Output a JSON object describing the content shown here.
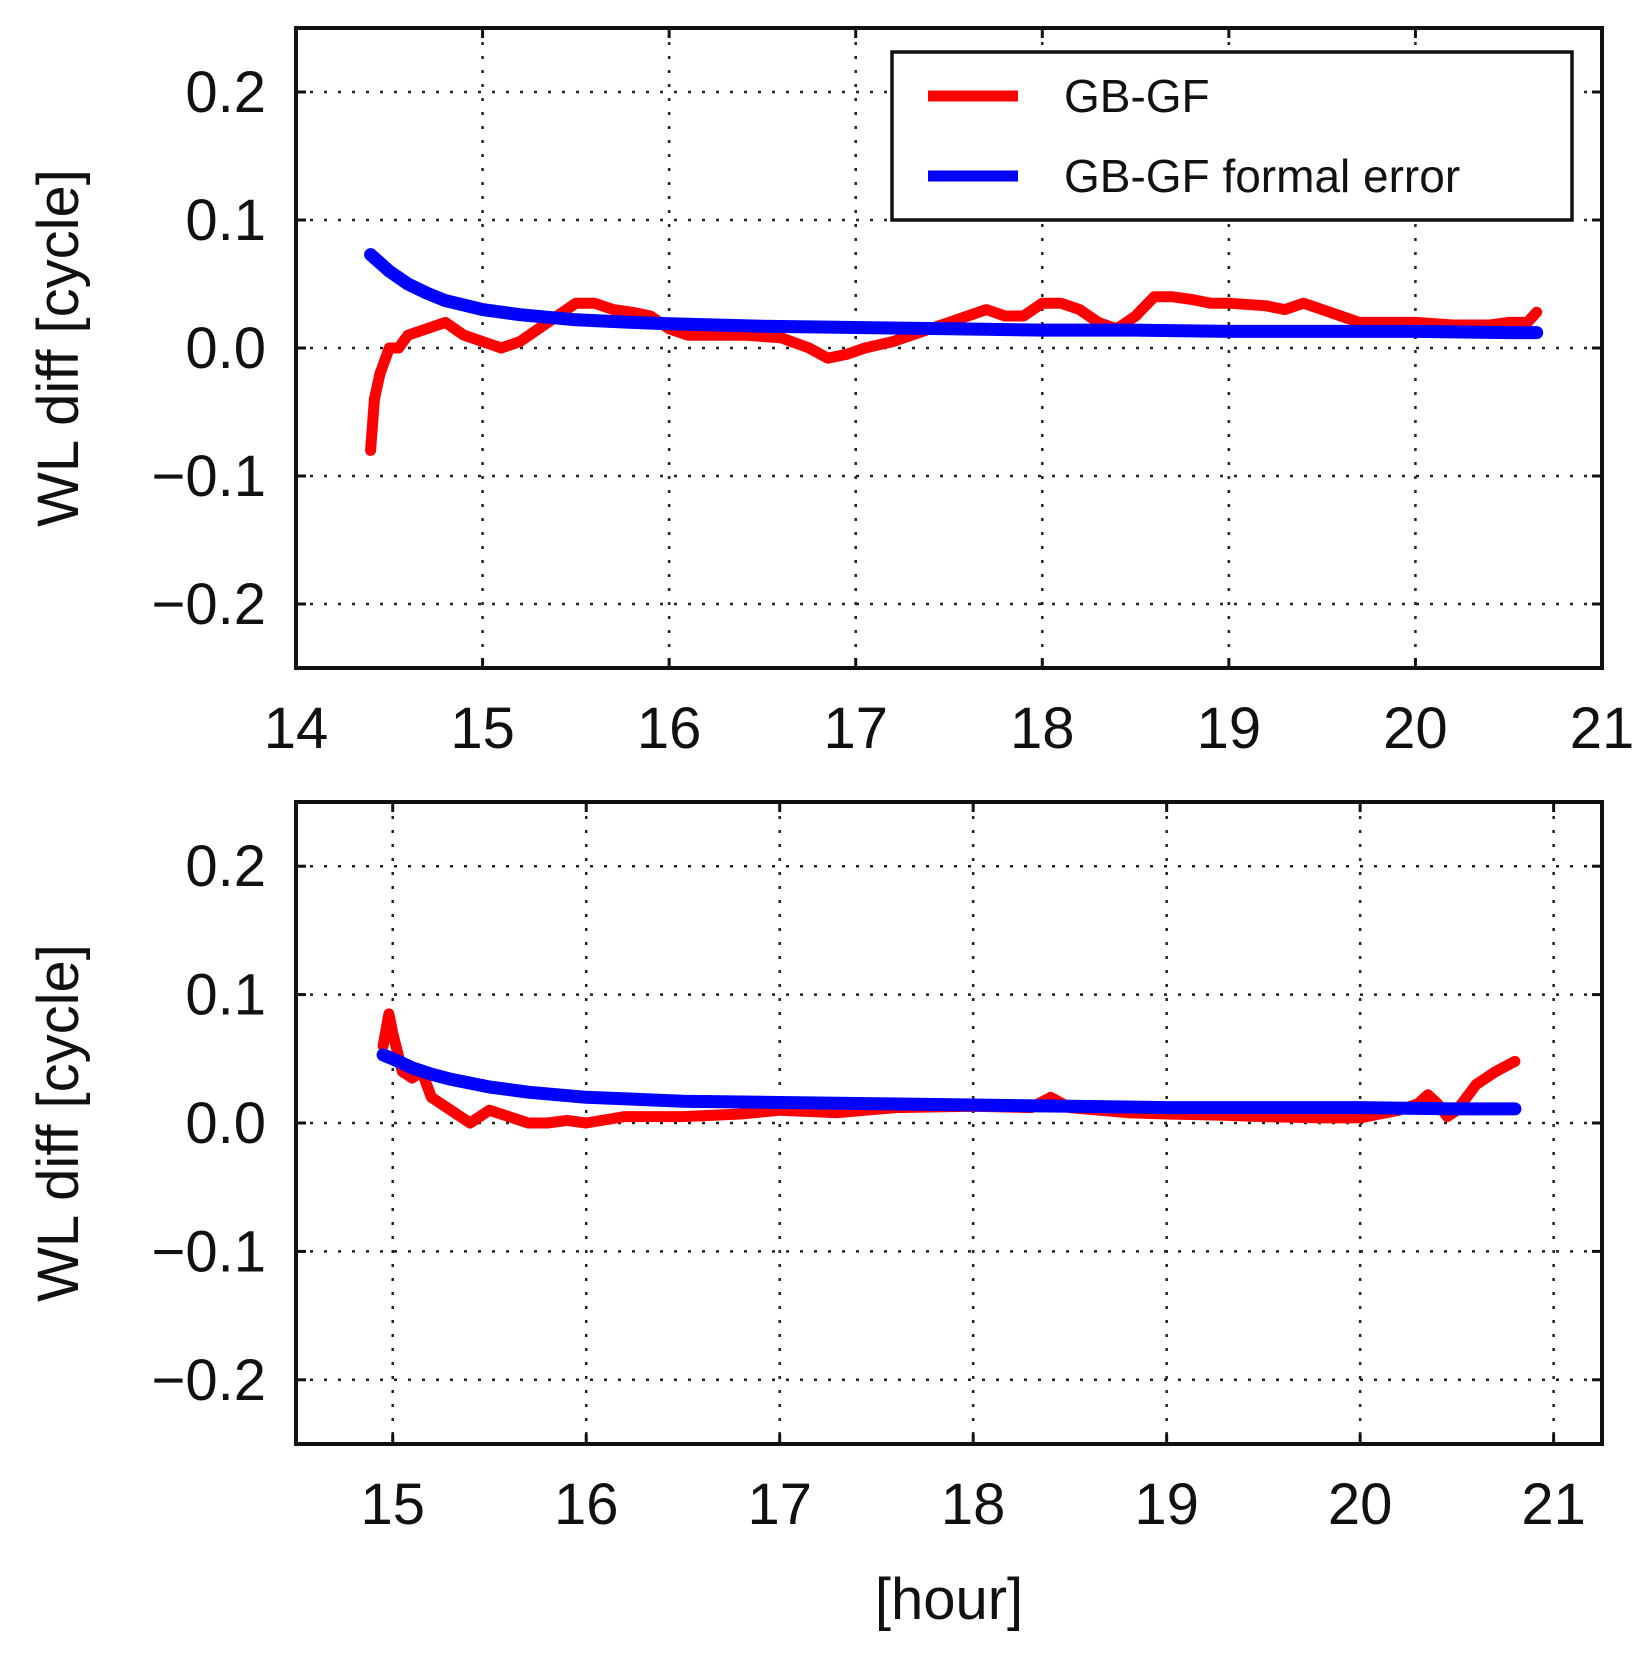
{
  "chart_data": [
    {
      "type": "line",
      "xlim": [
        14,
        21
      ],
      "ylim": [
        -0.25,
        0.25
      ],
      "xticks": [
        "14",
        "15",
        "16",
        "17",
        "18",
        "19",
        "20",
        "21"
      ],
      "yticks": [
        "0.2",
        "0.1",
        "0.0",
        "−0.1",
        "−0.2"
      ],
      "xlabel": "",
      "ylabel": "WL diff [cycle]",
      "grid": true,
      "legend": "top-right",
      "series": [
        {
          "name": "GB-GF",
          "color": "#ff0000",
          "x": [
            14.4,
            14.42,
            14.45,
            14.5,
            14.55,
            14.6,
            14.7,
            14.8,
            14.9,
            15.0,
            15.1,
            15.2,
            15.3,
            15.4,
            15.5,
            15.6,
            15.7,
            15.8,
            15.9,
            16.0,
            16.1,
            16.2,
            16.4,
            16.6,
            16.75,
            16.85,
            16.95,
            17.05,
            17.2,
            17.4,
            17.6,
            17.7,
            17.8,
            17.9,
            18.0,
            18.1,
            18.2,
            18.3,
            18.4,
            18.5,
            18.6,
            18.7,
            18.8,
            18.9,
            19.0,
            19.2,
            19.3,
            19.4,
            19.5,
            19.6,
            19.7,
            19.8,
            20.0,
            20.2,
            20.4,
            20.5,
            20.6,
            20.65
          ],
          "y": [
            -0.08,
            -0.04,
            -0.02,
            0.0,
            0.0,
            0.01,
            0.015,
            0.02,
            0.01,
            0.005,
            0.0,
            0.005,
            0.015,
            0.025,
            0.035,
            0.035,
            0.03,
            0.028,
            0.025,
            0.015,
            0.01,
            0.01,
            0.01,
            0.008,
            0.0,
            -0.008,
            -0.005,
            0.0,
            0.005,
            0.015,
            0.025,
            0.03,
            0.025,
            0.025,
            0.035,
            0.035,
            0.03,
            0.02,
            0.015,
            0.025,
            0.04,
            0.04,
            0.038,
            0.035,
            0.035,
            0.033,
            0.03,
            0.035,
            0.03,
            0.025,
            0.02,
            0.02,
            0.02,
            0.018,
            0.018,
            0.02,
            0.02,
            0.028
          ]
        },
        {
          "name": "GB-GF formal error",
          "color": "#0000ff",
          "x": [
            14.4,
            14.5,
            14.6,
            14.7,
            14.8,
            15.0,
            15.2,
            15.5,
            15.8,
            16.0,
            16.5,
            17.0,
            17.5,
            18.0,
            18.5,
            19.0,
            19.5,
            20.0,
            20.5,
            20.65
          ],
          "y": [
            0.073,
            0.06,
            0.05,
            0.043,
            0.037,
            0.03,
            0.026,
            0.022,
            0.02,
            0.019,
            0.017,
            0.016,
            0.015,
            0.014,
            0.014,
            0.013,
            0.013,
            0.013,
            0.012,
            0.012
          ]
        }
      ]
    },
    {
      "type": "line",
      "xlim": [
        14.5,
        21.25
      ],
      "ylim": [
        -0.25,
        0.25
      ],
      "xticks": [
        "15",
        "16",
        "17",
        "18",
        "19",
        "20",
        "21"
      ],
      "yticks": [
        "0.2",
        "0.1",
        "0.0",
        "−0.1",
        "−0.2"
      ],
      "xlabel": "[hour]",
      "ylabel": "WL diff [cycle]",
      "grid": true,
      "series": [
        {
          "name": "GB-GF",
          "color": "#ff0000",
          "x": [
            14.95,
            14.98,
            15.0,
            15.05,
            15.1,
            15.15,
            15.2,
            15.3,
            15.4,
            15.5,
            15.6,
            15.7,
            15.8,
            15.9,
            16.0,
            16.2,
            16.5,
            16.8,
            17.0,
            17.3,
            17.6,
            18.0,
            18.3,
            18.4,
            18.5,
            18.8,
            19.0,
            19.3,
            19.5,
            19.8,
            20.0,
            20.2,
            20.3,
            20.35,
            20.4,
            20.45,
            20.5,
            20.6,
            20.7,
            20.8
          ],
          "y": [
            0.06,
            0.085,
            0.07,
            0.04,
            0.035,
            0.04,
            0.02,
            0.01,
            0.0,
            0.01,
            0.005,
            0.0,
            0.0,
            0.002,
            0.0,
            0.005,
            0.005,
            0.007,
            0.01,
            0.008,
            0.012,
            0.013,
            0.012,
            0.02,
            0.012,
            0.008,
            0.007,
            0.006,
            0.005,
            0.004,
            0.004,
            0.01,
            0.015,
            0.022,
            0.015,
            0.005,
            0.01,
            0.03,
            0.04,
            0.048
          ]
        },
        {
          "name": "GB-GF formal error",
          "color": "#0000ff",
          "x": [
            14.95,
            15.0,
            15.1,
            15.2,
            15.3,
            15.5,
            15.7,
            16.0,
            16.5,
            17.0,
            17.5,
            18.0,
            18.5,
            19.0,
            19.5,
            20.0,
            20.5,
            20.8
          ],
          "y": [
            0.053,
            0.05,
            0.043,
            0.038,
            0.034,
            0.028,
            0.024,
            0.02,
            0.017,
            0.016,
            0.015,
            0.014,
            0.013,
            0.012,
            0.012,
            0.012,
            0.011,
            0.011
          ]
        }
      ]
    }
  ]
}
